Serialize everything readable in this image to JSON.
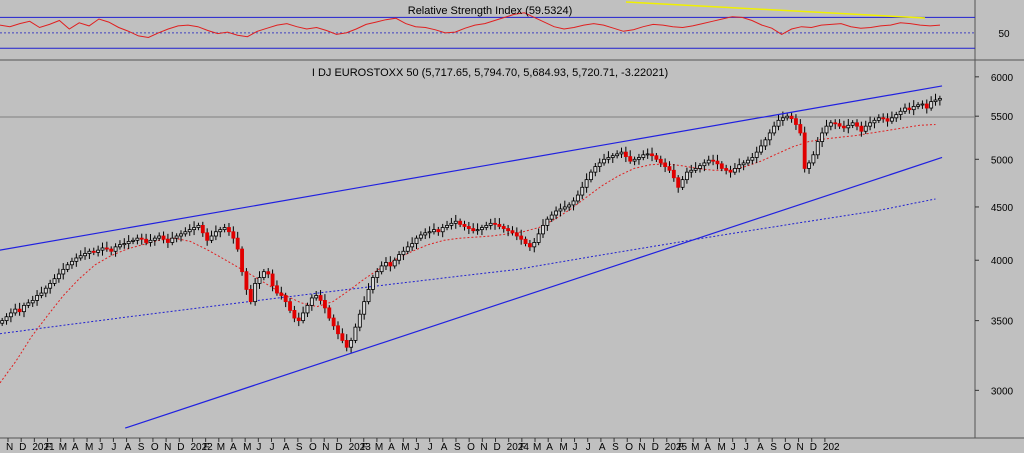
{
  "chart_data": [
    {
      "panel": "indicator",
      "type": "line",
      "title": "Relative Strength Index (59.5324)",
      "y_tick_labels": [
        "50"
      ],
      "reference_levels": [
        30,
        50,
        70
      ],
      "series": [
        {
          "name": "",
          "color": "#e02020",
          "values": [
            60,
            58,
            62,
            65,
            57,
            61,
            66,
            55,
            63,
            59,
            68,
            64,
            57,
            52,
            46,
            44,
            50,
            55,
            59,
            60,
            58,
            53,
            49,
            51,
            47,
            45,
            52,
            56,
            60,
            62,
            58,
            55,
            57,
            53,
            48,
            50,
            55,
            61,
            64,
            67,
            69,
            62,
            58,
            57,
            54,
            50,
            51,
            56,
            60,
            62,
            66,
            70,
            74,
            76,
            70,
            64,
            58,
            55,
            57,
            60,
            62,
            60,
            56,
            52,
            54,
            58,
            61,
            60,
            58,
            57,
            59,
            62,
            65,
            68,
            71,
            70,
            66,
            60,
            56,
            48,
            55,
            58,
            57,
            60,
            61,
            62,
            58,
            56,
            57,
            59,
            60,
            63,
            62,
            60,
            59,
            60
          ]
        }
      ],
      "divergence_line_color": "#f0f000"
    },
    {
      "panel": "price",
      "type": "candlestick",
      "title": "I DJ EUROSTOXX 50 (5,717.65, 5,794.70, 5,684.93, 5,720.71, -3.22021)",
      "y_scale": "log",
      "ylim": [
        2700,
        6200
      ],
      "y_ticks": [
        3000,
        3500,
        4000,
        4500,
        5000,
        5500,
        6000
      ],
      "y_tick_labels": [
        "3000",
        "3500",
        "4000",
        "4500",
        "5000",
        "5500",
        "6000"
      ],
      "x_tick_labels": [
        "N",
        "D",
        "2021",
        "F",
        "M",
        "A",
        "M",
        "J",
        "J",
        "A",
        "S",
        "O",
        "N",
        "D",
        "2022",
        "F",
        "M",
        "A",
        "M",
        "J",
        "J",
        "A",
        "S",
        "O",
        "N",
        "D",
        "2023",
        "F",
        "M",
        "A",
        "M",
        "J",
        "J",
        "A",
        "S",
        "O",
        "N",
        "D",
        "2024",
        "F",
        "M",
        "A",
        "M",
        "J",
        "J",
        "A",
        "S",
        "O",
        "N",
        "D",
        "2025",
        "F",
        "M",
        "A",
        "M",
        "J",
        "J",
        "A",
        "S",
        "O",
        "N",
        "D",
        "202"
      ],
      "x_range_months": [
        0,
        74
      ],
      "closes_weekly": [
        3500,
        3530,
        3560,
        3590,
        3570,
        3620,
        3640,
        3660,
        3700,
        3720,
        3760,
        3800,
        3840,
        3880,
        3920,
        3960,
        3990,
        4020,
        4040,
        4060,
        4080,
        4070,
        4090,
        4110,
        4100,
        4080,
        4120,
        4140,
        4150,
        4170,
        4180,
        4200,
        4190,
        4160,
        4180,
        4200,
        4220,
        4190,
        4160,
        4200,
        4220,
        4240,
        4260,
        4280,
        4300,
        4320,
        4250,
        4180,
        4220,
        4260,
        4280,
        4300,
        4260,
        4200,
        4100,
        3900,
        3750,
        3650,
        3800,
        3850,
        3900,
        3880,
        3780,
        3720,
        3700,
        3650,
        3580,
        3520,
        3500,
        3560,
        3620,
        3680,
        3700,
        3660,
        3600,
        3520,
        3460,
        3400,
        3350,
        3300,
        3350,
        3450,
        3550,
        3650,
        3750,
        3850,
        3900,
        3950,
        3980,
        3950,
        4000,
        4050,
        4080,
        4120,
        4150,
        4200,
        4230,
        4250,
        4260,
        4280,
        4260,
        4300,
        4320,
        4340,
        4360,
        4330,
        4310,
        4290,
        4270,
        4280,
        4300,
        4320,
        4340,
        4330,
        4310,
        4290,
        4270,
        4250,
        4220,
        4190,
        4150,
        4120,
        4160,
        4240,
        4320,
        4380,
        4420,
        4460,
        4480,
        4500,
        4520,
        4560,
        4620,
        4700,
        4780,
        4860,
        4920,
        4960,
        5000,
        5020,
        5040,
        5060,
        5080,
        5030,
        4980,
        5000,
        5020,
        5050,
        5060,
        5040,
        5000,
        4960,
        4920,
        4880,
        4800,
        4700,
        4780,
        4860,
        4880,
        4900,
        4930,
        4960,
        4990,
        4980,
        4950,
        4900,
        4880,
        4860,
        4900,
        4940,
        4960,
        4990,
        5020,
        5080,
        5150,
        5220,
        5300,
        5380,
        5450,
        5480,
        5500,
        5470,
        5400,
        5300,
        4900,
        4960,
        5050,
        5200,
        5300,
        5380,
        5420,
        5410,
        5380,
        5360,
        5390,
        5420,
        5380,
        5320,
        5380,
        5420,
        5450,
        5480,
        5470,
        5440,
        5480,
        5520,
        5560,
        5600,
        5580,
        5620,
        5640,
        5650,
        5600,
        5680,
        5700,
        5720
      ],
      "ma_red_dotted": {
        "start_month": 0,
        "end_month": 71,
        "values": [
          3050,
          3200,
          3380,
          3540,
          3700,
          3840,
          3960,
          4040,
          4100,
          4140,
          4180,
          4200,
          4170,
          4100,
          4020,
          3940,
          3860,
          3780,
          3700,
          3640,
          3610,
          3650,
          3740,
          3840,
          3930,
          4010,
          4080,
          4140,
          4180,
          4200,
          4210,
          4220,
          4240,
          4260,
          4300,
          4380,
          4480,
          4600,
          4720,
          4820,
          4900,
          4940,
          4950,
          4930,
          4900,
          4880,
          4880,
          4920,
          4980,
          5060,
          5140,
          5200,
          5230,
          5250,
          5270,
          5300,
          5330,
          5360,
          5390,
          5400
        ]
      },
      "ma_blue_dotted": {
        "start_month": 0,
        "end_month": 71,
        "values": [
          3400,
          3420,
          3440,
          3460,
          3480,
          3500,
          3520,
          3540,
          3560,
          3580,
          3600,
          3620,
          3640,
          3660,
          3680,
          3700,
          3720,
          3740,
          3760,
          3780,
          3800,
          3820,
          3840,
          3860,
          3880,
          3900,
          3920,
          3950,
          3980,
          4010,
          4040,
          4070,
          4100,
          4130,
          4160,
          4190,
          4220,
          4250,
          4280,
          4310,
          4340,
          4370,
          4400,
          4430,
          4460,
          4500,
          4540,
          4580
        ]
      },
      "trendlines": [
        {
          "name": "upper-channel",
          "color": "#2020e0",
          "from": {
            "month": -0.5,
            "value": 4080
          },
          "to": {
            "month": 71.5,
            "value": 5880
          }
        },
        {
          "name": "lower-channel",
          "color": "#2020e0",
          "from": {
            "month": 9.5,
            "value": 2760
          },
          "to": {
            "month": 71.5,
            "value": 5020
          }
        }
      ],
      "up_color": "#111111",
      "down_color": "#e00000"
    }
  ]
}
